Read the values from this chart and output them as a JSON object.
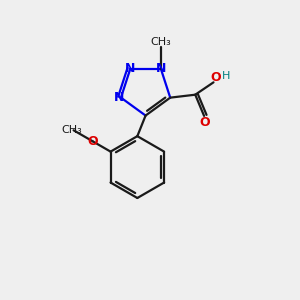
{
  "bg_color": "#efefef",
  "bond_color": "#1a1a1a",
  "n_color": "#0000ee",
  "o_color": "#dd0000",
  "h_color": "#008080",
  "line_width": 1.6,
  "figsize": [
    3.0,
    3.0
  ],
  "dpi": 100,
  "xlim": [
    0,
    10
  ],
  "ylim": [
    0,
    10
  ]
}
